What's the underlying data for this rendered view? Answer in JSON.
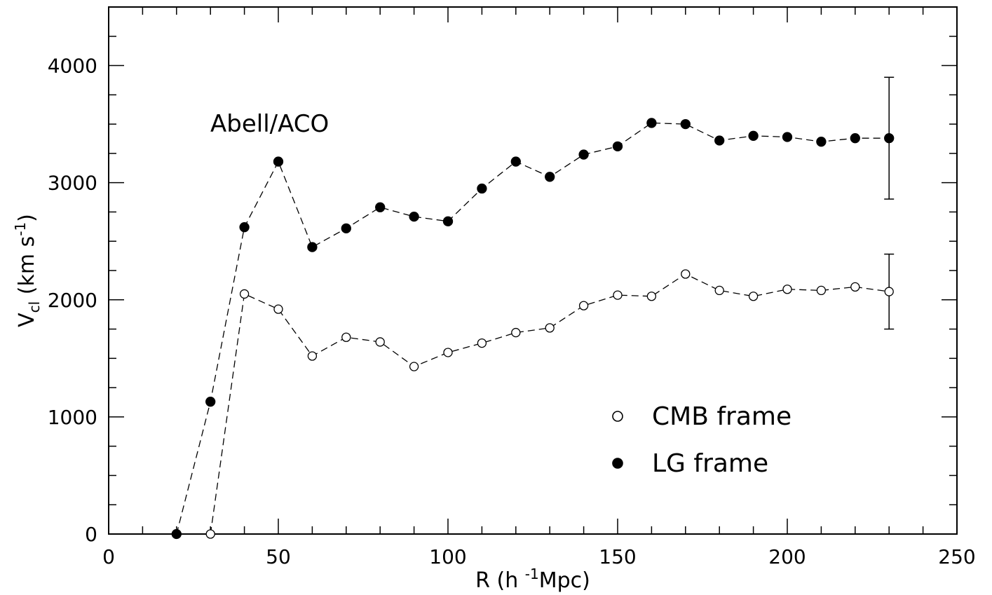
{
  "chart_data": {
    "type": "scatter",
    "x_label": {
      "pre": "R (h ",
      "sup": "-1",
      "post": "Mpc)"
    },
    "y_label": {
      "main": "V",
      "sub": "cl",
      "mid": " (km s",
      "sup": "-1",
      "post": ")"
    },
    "x_ticks": [
      "0",
      "50",
      "100",
      "150",
      "200",
      "250"
    ],
    "y_ticks": [
      "0",
      "1000",
      "2000",
      "3000",
      "4000"
    ],
    "xlim": [
      0,
      250
    ],
    "ylim": [
      0,
      4500
    ],
    "grid": false,
    "annotation": "Abell/ACO",
    "legend_position": "lower-right",
    "series": [
      {
        "name": "CMB frame",
        "marker": "open-circle",
        "line": "dashed",
        "x": [
          30,
          40,
          50,
          60,
          70,
          80,
          90,
          100,
          110,
          120,
          130,
          140,
          150,
          160,
          170,
          180,
          190,
          200,
          210,
          220,
          230
        ],
        "y": [
          0,
          2050,
          1920,
          1520,
          1680,
          1640,
          1430,
          1550,
          1630,
          1720,
          1760,
          1950,
          2040,
          2030,
          2220,
          2080,
          2030,
          2090,
          2080,
          2110,
          2070
        ],
        "error_bar": {
          "x": 230,
          "y_low": 1750,
          "y_high": 2390
        }
      },
      {
        "name": "LG frame",
        "marker": "filled-circle",
        "line": "dashed",
        "x": [
          20,
          30,
          40,
          50,
          60,
          70,
          80,
          90,
          100,
          110,
          120,
          130,
          140,
          150,
          160,
          170,
          180,
          190,
          200,
          210,
          220,
          230
        ],
        "y": [
          0,
          1130,
          2620,
          3180,
          2450,
          2610,
          2790,
          2710,
          2670,
          2950,
          3180,
          3050,
          3240,
          3310,
          3510,
          3500,
          3360,
          3400,
          3390,
          3350,
          3380,
          3380
        ],
        "error_bar": {
          "x": 230,
          "y_low": 2860,
          "y_high": 3900
        }
      }
    ]
  },
  "colors": {
    "ink": "#000000",
    "background": "#ffffff"
  }
}
